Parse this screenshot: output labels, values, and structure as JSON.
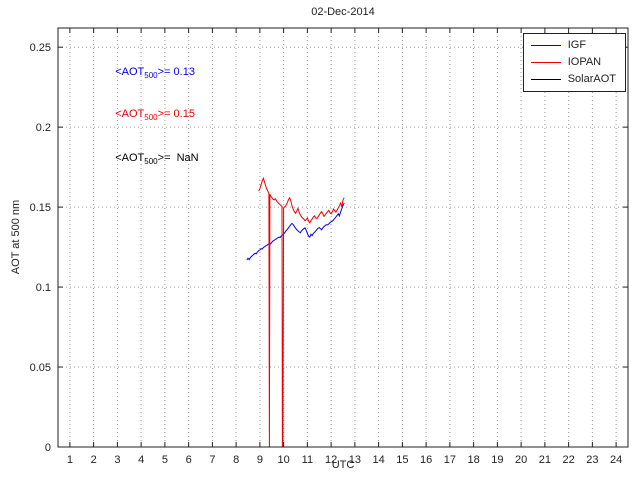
{
  "title": "02-Dec-2014",
  "xlabel": "UTC",
  "ylabel": "AOT at 500 nm",
  "annotations": [
    {
      "pre": "<AOT",
      "sub": "500",
      "post": ">= 0.13",
      "color": "#0000ee"
    },
    {
      "pre": "<AOT",
      "sub": "500",
      "post": ">= 0.15",
      "color": "#ee0000"
    },
    {
      "pre": "<AOT",
      "sub": "500",
      "post": ">=  NaN",
      "color": "#000000"
    }
  ],
  "legend": [
    {
      "label": "IGF",
      "color": "#0000ee"
    },
    {
      "label": "IOPAN",
      "color": "#ee0000"
    },
    {
      "label": "SolarAOT",
      "color": "#000000"
    }
  ],
  "chart_data": {
    "type": "line",
    "title": "02-Dec-2014",
    "xlabel": "UTC",
    "ylabel": "AOT at 500 nm",
    "xlim": [
      0.5,
      24.5
    ],
    "ylim": [
      0,
      0.262
    ],
    "xticks": [
      1,
      2,
      3,
      4,
      5,
      6,
      7,
      8,
      9,
      10,
      11,
      12,
      13,
      14,
      15,
      16,
      17,
      18,
      19,
      20,
      21,
      22,
      23,
      24
    ],
    "yticks": [
      0,
      0.05,
      0.1,
      0.15,
      0.2,
      0.25
    ],
    "grid": true,
    "legend_position": "top-right",
    "series": [
      {
        "name": "IGF",
        "color": "#0000ee",
        "mean_aot_500": 0.13,
        "points": [
          [
            8.45,
            0.117
          ],
          [
            8.5,
            0.118
          ],
          [
            8.55,
            0.1172
          ],
          [
            8.6,
            0.1185
          ],
          [
            8.65,
            0.1192
          ],
          [
            8.7,
            0.1198
          ],
          [
            8.75,
            0.1205
          ],
          [
            8.8,
            0.1212
          ],
          [
            8.85,
            0.1208
          ],
          [
            8.9,
            0.122
          ],
          [
            8.95,
            0.1228
          ],
          [
            9.0,
            0.1232
          ],
          [
            9.05,
            0.124
          ],
          [
            9.1,
            0.1238
          ],
          [
            9.15,
            0.1248
          ],
          [
            9.2,
            0.1252
          ],
          [
            9.25,
            0.1258
          ],
          [
            9.3,
            0.1262
          ],
          [
            9.35,
            0.1268
          ],
          [
            9.4,
            0.1272
          ],
          [
            9.45,
            0.127
          ],
          [
            9.5,
            0.128
          ],
          [
            9.55,
            0.1288
          ],
          [
            9.6,
            0.1292
          ],
          [
            9.65,
            0.1298
          ],
          [
            9.7,
            0.1302
          ],
          [
            9.75,
            0.1308
          ],
          [
            9.8,
            0.1312
          ],
          [
            9.85,
            0.131
          ],
          [
            9.9,
            0.132
          ],
          [
            9.95,
            0.1325
          ],
          [
            10.0,
            0.1332
          ],
          [
            10.05,
            0.134
          ],
          [
            10.1,
            0.1352
          ],
          [
            10.15,
            0.136
          ],
          [
            10.2,
            0.137
          ],
          [
            10.25,
            0.138
          ],
          [
            10.3,
            0.139
          ],
          [
            10.35,
            0.1398
          ],
          [
            10.4,
            0.1392
          ],
          [
            10.45,
            0.138
          ],
          [
            10.5,
            0.1368
          ],
          [
            10.55,
            0.136
          ],
          [
            10.6,
            0.1352
          ],
          [
            10.65,
            0.1345
          ],
          [
            10.7,
            0.134
          ],
          [
            10.75,
            0.135
          ],
          [
            10.8,
            0.1358
          ],
          [
            10.85,
            0.1365
          ],
          [
            10.9,
            0.137
          ],
          [
            10.95,
            0.1355
          ],
          [
            11.0,
            0.1335
          ],
          [
            11.05,
            0.1318
          ],
          [
            11.1,
            0.1312
          ],
          [
            11.15,
            0.133
          ],
          [
            11.2,
            0.1322
          ],
          [
            11.25,
            0.1335
          ],
          [
            11.3,
            0.1342
          ],
          [
            11.35,
            0.135
          ],
          [
            11.4,
            0.136
          ],
          [
            11.45,
            0.1368
          ],
          [
            11.5,
            0.1372
          ],
          [
            11.55,
            0.1365
          ],
          [
            11.6,
            0.1358
          ],
          [
            11.65,
            0.137
          ],
          [
            11.7,
            0.1378
          ],
          [
            11.75,
            0.1385
          ],
          [
            11.8,
            0.139
          ],
          [
            11.85,
            0.1388
          ],
          [
            11.9,
            0.1395
          ],
          [
            11.95,
            0.1402
          ],
          [
            12.0,
            0.1408
          ],
          [
            12.05,
            0.1412
          ],
          [
            12.1,
            0.142
          ],
          [
            12.15,
            0.1428
          ],
          [
            12.2,
            0.1438
          ],
          [
            12.25,
            0.1448
          ],
          [
            12.3,
            0.1458
          ],
          [
            12.35,
            0.1445
          ],
          [
            12.4,
            0.147
          ],
          [
            12.45,
            0.149
          ],
          [
            12.5,
            0.151
          ],
          [
            12.55,
            0.1525
          ]
        ]
      },
      {
        "name": "IOPAN",
        "color": "#ee0000",
        "mean_aot_500": 0.15,
        "points": [
          [
            8.95,
            0.16
          ],
          [
            9.0,
            0.1615
          ],
          [
            9.05,
            0.164
          ],
          [
            9.1,
            0.1665
          ],
          [
            9.15,
            0.168
          ],
          [
            9.2,
            0.1655
          ],
          [
            9.25,
            0.163
          ],
          [
            9.3,
            0.161
          ],
          [
            9.35,
            0.1595
          ],
          [
            9.38,
            0.1585
          ],
          [
            9.4,
            0.0
          ],
          [
            9.42,
            0.158
          ],
          [
            9.45,
            0.157
          ],
          [
            9.5,
            0.156
          ],
          [
            9.55,
            0.155
          ],
          [
            9.6,
            0.1545
          ],
          [
            9.65,
            0.1552
          ],
          [
            9.7,
            0.154
          ],
          [
            9.75,
            0.153
          ],
          [
            9.8,
            0.1522
          ],
          [
            9.85,
            0.1515
          ],
          [
            9.9,
            0.1508
          ],
          [
            9.93,
            0.15
          ],
          [
            9.95,
            0.0
          ],
          [
            9.97,
            0.0
          ],
          [
            10.0,
            0.1495
          ],
          [
            10.05,
            0.1502
          ],
          [
            10.1,
            0.151
          ],
          [
            10.15,
            0.1525
          ],
          [
            10.2,
            0.1545
          ],
          [
            10.25,
            0.1558
          ],
          [
            10.3,
            0.154
          ],
          [
            10.35,
            0.151
          ],
          [
            10.4,
            0.1488
          ],
          [
            10.45,
            0.1472
          ],
          [
            10.5,
            0.1462
          ],
          [
            10.55,
            0.1475
          ],
          [
            10.6,
            0.1492
          ],
          [
            10.65,
            0.147
          ],
          [
            10.7,
            0.1452
          ],
          [
            10.75,
            0.144
          ],
          [
            10.8,
            0.1432
          ],
          [
            10.85,
            0.1425
          ],
          [
            10.9,
            0.1415
          ],
          [
            10.95,
            0.1422
          ],
          [
            11.0,
            0.1432
          ],
          [
            11.05,
            0.1412
          ],
          [
            11.1,
            0.1402
          ],
          [
            11.15,
            0.1415
          ],
          [
            11.2,
            0.1425
          ],
          [
            11.25,
            0.1438
          ],
          [
            11.3,
            0.1445
          ],
          [
            11.35,
            0.1432
          ],
          [
            11.4,
            0.1428
          ],
          [
            11.45,
            0.144
          ],
          [
            11.5,
            0.1452
          ],
          [
            11.55,
            0.1462
          ],
          [
            11.6,
            0.1472
          ],
          [
            11.65,
            0.1458
          ],
          [
            11.7,
            0.1442
          ],
          [
            11.75,
            0.1452
          ],
          [
            11.8,
            0.1462
          ],
          [
            11.85,
            0.1472
          ],
          [
            11.9,
            0.148
          ],
          [
            11.95,
            0.1465
          ],
          [
            12.0,
            0.1458
          ],
          [
            12.05,
            0.147
          ],
          [
            12.1,
            0.1488
          ],
          [
            12.15,
            0.1478
          ],
          [
            12.2,
            0.1468
          ],
          [
            12.25,
            0.1482
          ],
          [
            12.3,
            0.1495
          ],
          [
            12.35,
            0.1508
          ],
          [
            12.4,
            0.1525
          ],
          [
            12.45,
            0.1502
          ],
          [
            12.5,
            0.1545
          ],
          [
            12.55,
            0.1558
          ]
        ]
      },
      {
        "name": "SolarAOT",
        "color": "#000000",
        "mean_aot_500": null,
        "points": []
      }
    ]
  }
}
